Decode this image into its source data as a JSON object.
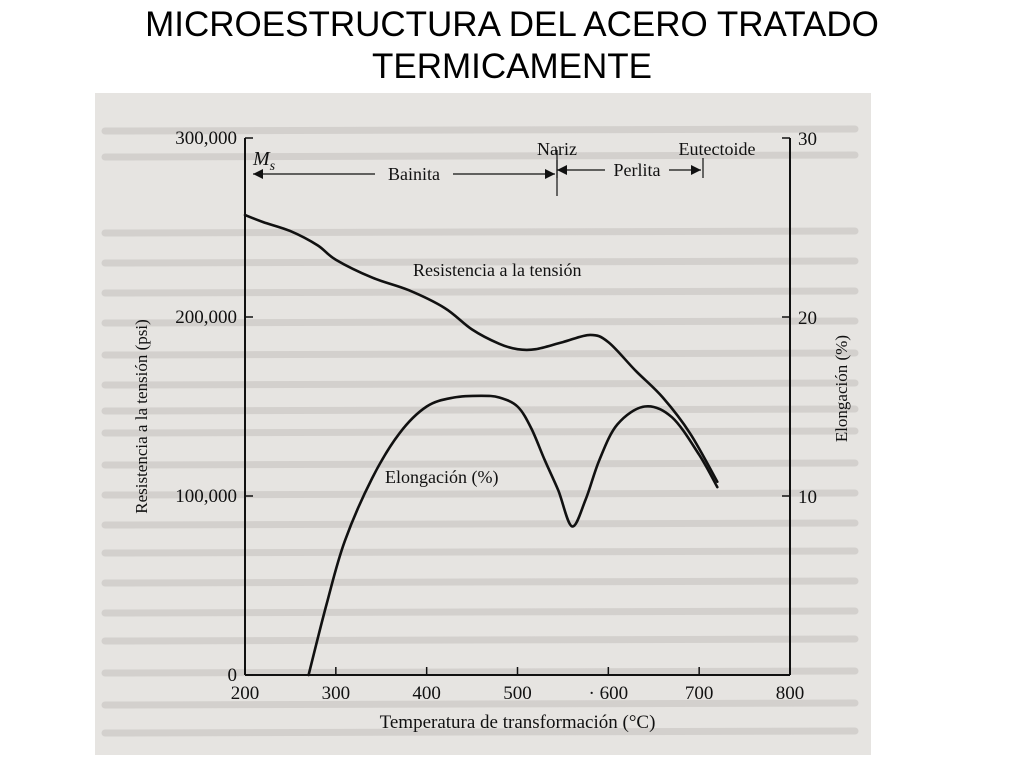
{
  "slide": {
    "title_line1": "MICROESTRUCTURA DEL ACERO TRATADO",
    "title_line2": "TERMICAMENTE"
  },
  "colors": {
    "ink": "#111111",
    "paper": "#e6e4e1",
    "ghost": "#b9b6b2"
  },
  "chart_data": {
    "type": "line",
    "xlabel": "Temperatura de transformación (°C)",
    "ylabel": "Resistencia a la tensión (psi)",
    "y2label": "Elongación (%)",
    "xlim": [
      200,
      800
    ],
    "ylim": [
      0,
      300000
    ],
    "y2lim": [
      0,
      30
    ],
    "x_ticks": [
      {
        "value": 200,
        "label": "200"
      },
      {
        "value": 300,
        "label": "300"
      },
      {
        "value": 400,
        "label": "400"
      },
      {
        "value": 500,
        "label": "500"
      },
      {
        "value": 600,
        "label": "· 600"
      },
      {
        "value": 700,
        "label": "700"
      },
      {
        "value": 800,
        "label": "800"
      }
    ],
    "y_ticks": [
      {
        "value": 0,
        "label": "0"
      },
      {
        "value": 100000,
        "label": "100,000"
      },
      {
        "value": 200000,
        "label": "200,000"
      },
      {
        "value": 300000,
        "label": "300,000"
      }
    ],
    "y2_ticks": [
      {
        "value": 0,
        "label": "0"
      },
      {
        "value": 10,
        "label": "10"
      },
      {
        "value": 20,
        "label": "20"
      },
      {
        "value": 30,
        "label": "30"
      }
    ],
    "series": [
      {
        "name": "Resistencia a la tensión",
        "axis": "left",
        "x": [
          200,
          220,
          250,
          280,
          300,
          340,
          380,
          420,
          450,
          480,
          500,
          520,
          550,
          580,
          600,
          630,
          660,
          690,
          720
        ],
        "y": [
          257000,
          253000,
          248000,
          240000,
          232000,
          222000,
          215000,
          205000,
          193000,
          185000,
          182000,
          182000,
          186000,
          190000,
          186000,
          170000,
          155000,
          135000,
          108000
        ]
      },
      {
        "name": "Elongación (%)",
        "axis": "right",
        "x": [
          270,
          290,
          310,
          340,
          370,
          400,
          430,
          460,
          480,
          500,
          515,
          530,
          545,
          560,
          575,
          590,
          610,
          640,
          670,
          700,
          720
        ],
        "y": [
          0,
          4,
          7.5,
          11,
          13.5,
          15,
          15.5,
          15.6,
          15.5,
          15,
          13.8,
          12,
          10.3,
          8.3,
          9.8,
          12,
          14,
          15,
          14.4,
          12.3,
          10.5
        ]
      }
    ],
    "annotations": {
      "ms": "Ms",
      "bainita": "Bainita",
      "nariz": "Nariz",
      "perlita": "Perlita",
      "eutectoide": "Eutectoide",
      "tension_label": "Resistencia a la tensión",
      "elong_label": "Elongación (%)"
    }
  }
}
